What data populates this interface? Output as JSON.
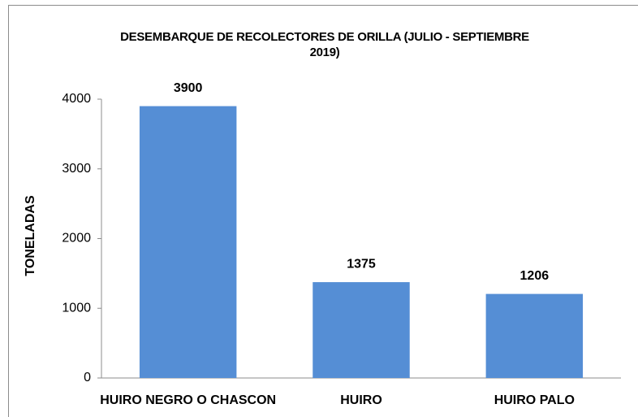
{
  "chart_data": {
    "type": "bar",
    "title": "DESEMBARQUE DE RECOLECTORES DE ORILLA (JULIO - SEPTIEMBRE 2019)",
    "y_label": "TONELADAS",
    "categories": [
      "HUIRO NEGRO O CHASCON",
      "HUIRO",
      "HUIRO PALO"
    ],
    "values": [
      3900,
      1375,
      1206
    ],
    "color": "#558ed5",
    "ylim": [
      0,
      4000
    ],
    "yticks": [
      0,
      1000,
      2000,
      3000,
      4000
    ],
    "grid": false
  }
}
